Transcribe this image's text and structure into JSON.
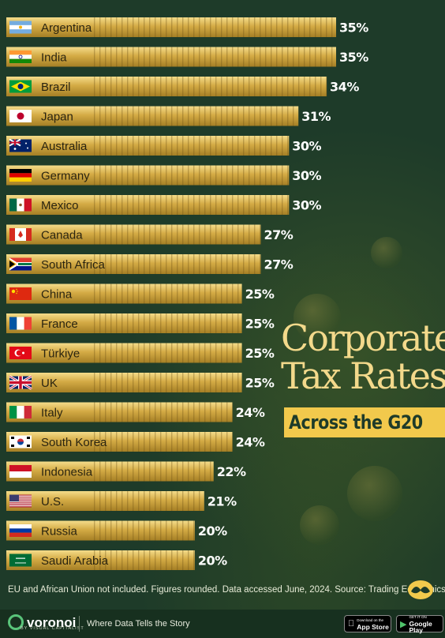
{
  "title": [
    "Corporate",
    "Tax Rates"
  ],
  "subtitle": "Across the G20",
  "footnote": "EU and African Union not included. Figures rounded. Data accessed June, 2024. Source: Trading Economics",
  "footer": {
    "brand": "voronoi",
    "brand_sub": "BY VISUAL CAPITALIST",
    "tagline": "Where Data Tells the Story",
    "app_store": {
      "small": "Download on the",
      "big": "App Store"
    },
    "google_play": {
      "small": "GET IT ON",
      "big": "Google Play"
    }
  },
  "colors": {
    "background": "#1e3b29",
    "bar": "#d9b24a",
    "title": "#f3d98b",
    "subtitle_bg": "#f2c94c",
    "value_text": "#ffffff"
  },
  "chart_data": {
    "type": "bar",
    "orientation": "horizontal",
    "unit": "%",
    "categories": [
      "Argentina",
      "India",
      "Brazil",
      "Japan",
      "Australia",
      "Germany",
      "Mexico",
      "Canada",
      "South Africa",
      "China",
      "France",
      "Türkiye",
      "UK",
      "Italy",
      "South Korea",
      "Indonesia",
      "U.S.",
      "Russia",
      "Saudi Arabia"
    ],
    "values": [
      35,
      35,
      34,
      31,
      30,
      30,
      30,
      27,
      27,
      25,
      25,
      25,
      25,
      24,
      24,
      22,
      21,
      20,
      20
    ],
    "value_labels": [
      "35%",
      "35%",
      "34%",
      "31%",
      "30%",
      "30%",
      "30%",
      "27%",
      "27%",
      "25%",
      "25%",
      "25%",
      "25%",
      "24%",
      "24%",
      "22%",
      "21%",
      "20%",
      "20%"
    ],
    "flags": [
      "argentina-flag",
      "india-flag",
      "brazil-flag",
      "japan-flag",
      "australia-flag",
      "germany-flag",
      "mexico-flag",
      "canada-flag",
      "south-africa-flag",
      "china-flag",
      "france-flag",
      "turkiye-flag",
      "uk-flag",
      "italy-flag",
      "south-korea-flag",
      "indonesia-flag",
      "us-flag",
      "russia-flag",
      "saudi-arabia-flag"
    ],
    "xlim": [
      0,
      35
    ],
    "grid": false,
    "legend": "none"
  }
}
